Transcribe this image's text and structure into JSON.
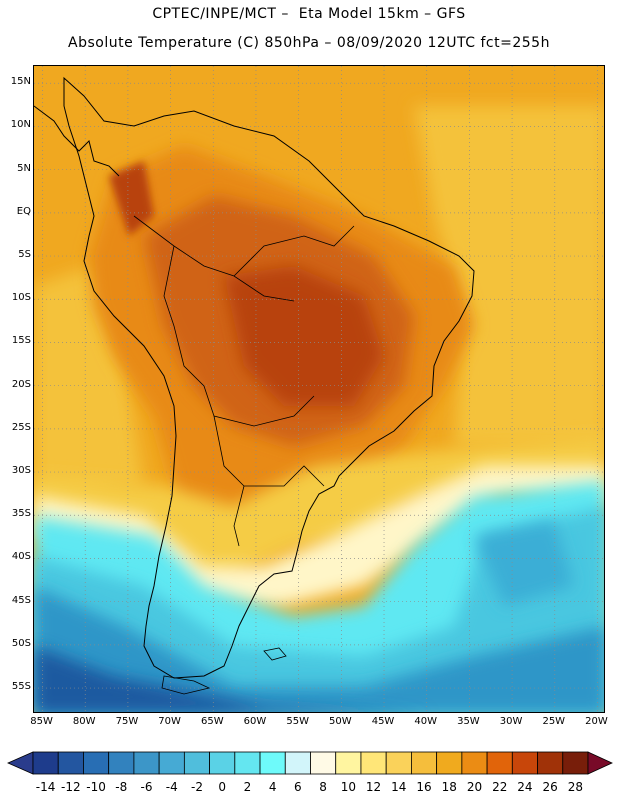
{
  "header": {
    "line1": "CPTEC/INPE/MCT –  Eta Model 15km – GFS",
    "line2": "Absolute Temperature (C) 850hPa – 08/09/2020 12UTC fct=255h"
  },
  "map": {
    "projection": "lat-lon",
    "lon_range": [
      -86,
      -19
    ],
    "lat_range": [
      17,
      -58
    ],
    "lat_labels": [
      "15N",
      "10N",
      "5N",
      "EQ",
      "5S",
      "10S",
      "15S",
      "20S",
      "25S",
      "30S",
      "35S",
      "40S",
      "45S",
      "50S",
      "55S"
    ],
    "lat_values": [
      15,
      10,
      5,
      0,
      -5,
      -10,
      -15,
      -20,
      -25,
      -30,
      -35,
      -40,
      -45,
      -50,
      -55
    ],
    "lon_labels": [
      "85W",
      "80W",
      "75W",
      "70W",
      "65W",
      "60W",
      "55W",
      "50W",
      "45W",
      "40W",
      "35W",
      "30W",
      "25W",
      "20W"
    ],
    "lon_values": [
      -85,
      -80,
      -75,
      -70,
      -65,
      -60,
      -55,
      -50,
      -45,
      -40,
      -35,
      -30,
      -25,
      -20
    ],
    "field_colors": {
      "ocean_warm": "#f0a820",
      "land_warm": "#e88a18",
      "hot_core": "#c04a10",
      "very_hot": "#a8380c",
      "mild": "#f5cc45",
      "cool_band": "#fff6c8",
      "cyan": "#5fe8f2",
      "light_blue": "#48c7e0",
      "blue": "#2e96c8",
      "deep_blue": "#1e5aa0"
    }
  },
  "colorbar": {
    "labels": [
      "-14",
      "-12",
      "-10",
      "-8",
      "-6",
      "-4",
      "-2",
      "0",
      "2",
      "4",
      "6",
      "8",
      "10",
      "12",
      "14",
      "16",
      "18",
      "20",
      "22",
      "24",
      "26",
      "28"
    ],
    "under_color": "#2a3c8c",
    "over_color": "#780a28",
    "colors": [
      "#1e3c8c",
      "#2356a0",
      "#286eb4",
      "#3282be",
      "#3c96c8",
      "#46aad4",
      "#50bedc",
      "#5ad2e6",
      "#64e6f0",
      "#6efafa",
      "#d2f5fa",
      "#fffae6",
      "#fff5a0",
      "#ffe678",
      "#fad25a",
      "#f5be3c",
      "#f0aa1e",
      "#eb8c14",
      "#e1640a",
      "#c8460a",
      "#a03208",
      "#781e0a"
    ]
  }
}
